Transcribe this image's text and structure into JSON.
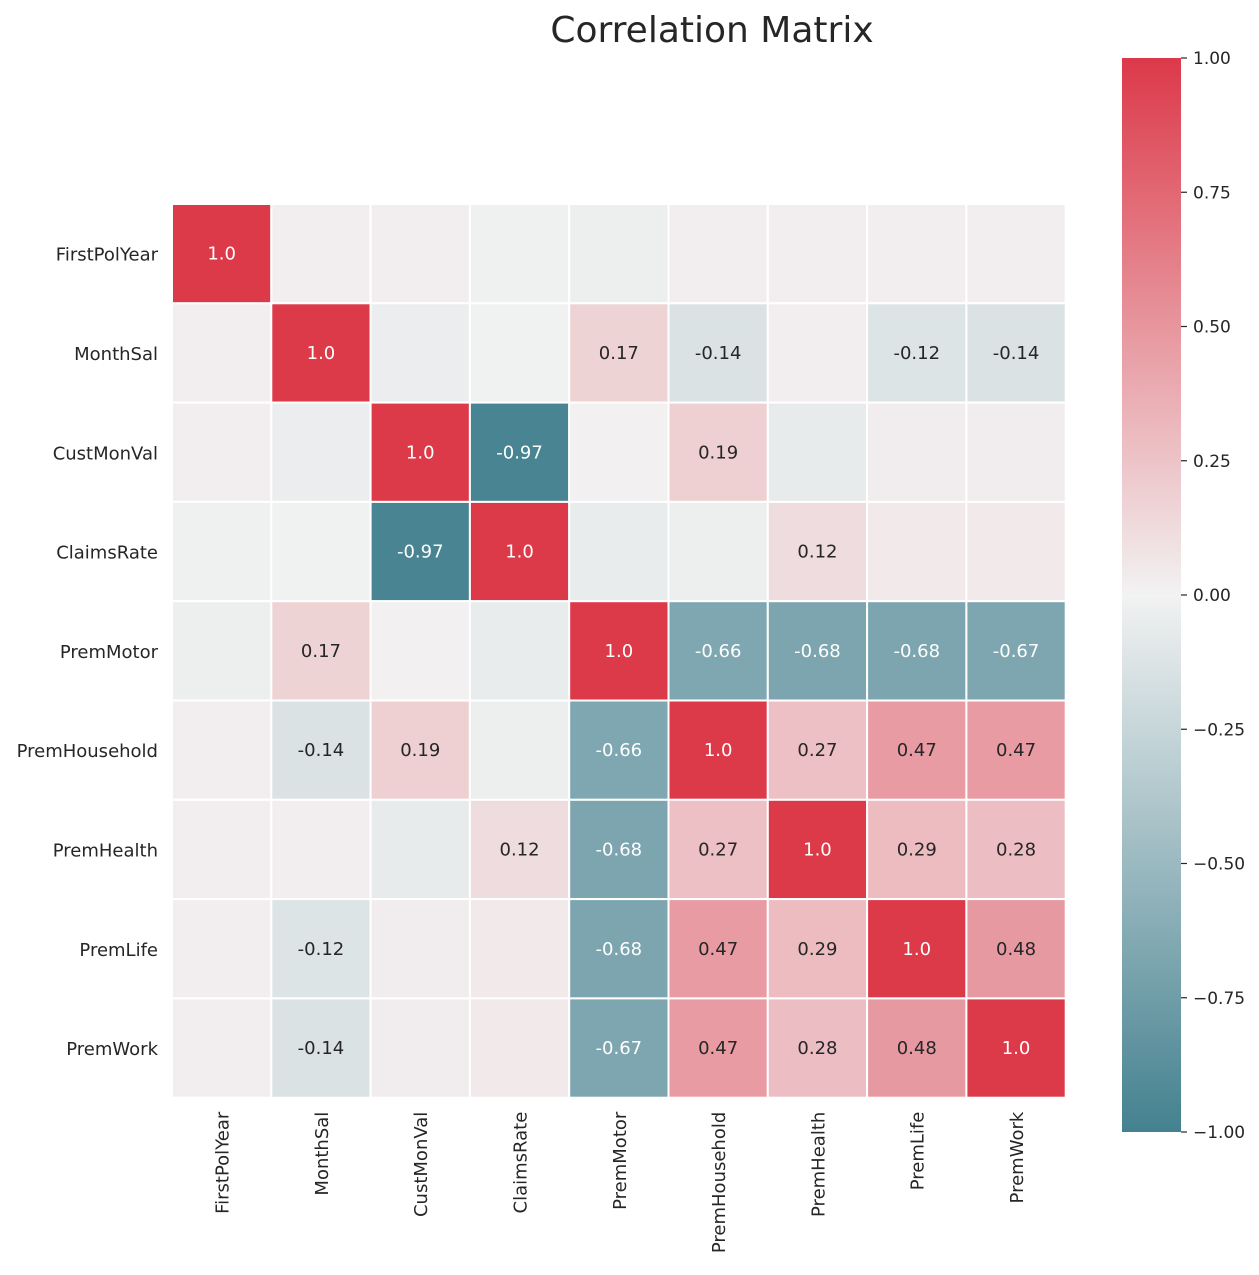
{
  "chart_data": {
    "type": "heatmap",
    "title": "Correlation Matrix",
    "x_labels": [
      "FirstPolYear",
      "MonthSal",
      "CustMonVal",
      "ClaimsRate",
      "PremMotor",
      "PremHousehold",
      "PremHealth",
      "PremLife",
      "PremWork"
    ],
    "y_labels": [
      "FirstPolYear",
      "MonthSal",
      "CustMonVal",
      "ClaimsRate",
      "PremMotor",
      "PremHousehold",
      "PremHealth",
      "PremLife",
      "PremWork"
    ],
    "values": [
      [
        1.0,
        0.02,
        0.02,
        -0.02,
        -0.03,
        0.02,
        0.02,
        0.02,
        0.02
      ],
      [
        0.02,
        1.0,
        -0.04,
        -0.01,
        0.17,
        -0.14,
        0.02,
        -0.12,
        -0.14
      ],
      [
        0.02,
        -0.04,
        1.0,
        -0.97,
        0.01,
        0.19,
        -0.06,
        0.03,
        0.03
      ],
      [
        -0.02,
        -0.01,
        -0.97,
        1.0,
        -0.05,
        -0.03,
        0.12,
        0.05,
        0.05
      ],
      [
        -0.03,
        0.17,
        0.01,
        -0.05,
        1.0,
        -0.66,
        -0.68,
        -0.68,
        -0.67
      ],
      [
        0.02,
        -0.14,
        0.19,
        -0.03,
        -0.66,
        1.0,
        0.27,
        0.47,
        0.47
      ],
      [
        0.02,
        0.02,
        -0.06,
        0.12,
        -0.68,
        0.27,
        1.0,
        0.29,
        0.28
      ],
      [
        0.02,
        -0.12,
        0.03,
        0.05,
        -0.68,
        0.47,
        0.29,
        1.0,
        0.48
      ],
      [
        0.02,
        -0.14,
        0.03,
        0.05,
        -0.67,
        0.47,
        0.28,
        0.48,
        1.0
      ]
    ],
    "annotation_threshold": 0.1,
    "vmin": -1.0,
    "vmax": 1.0,
    "colorbar_ticks": [
      "1.00",
      "0.75",
      "0.50",
      "0.25",
      "0.00",
      "−0.25",
      "−0.50",
      "−0.75",
      "−1.00"
    ],
    "colors": {
      "negative": "#44818f",
      "center": "#f2f2f2",
      "positive": "#dc3949",
      "grid": "#ffffff",
      "text_dark": "#262626",
      "text_light": "#ffffff"
    },
    "grid": false,
    "legend": "colorbar-right"
  }
}
